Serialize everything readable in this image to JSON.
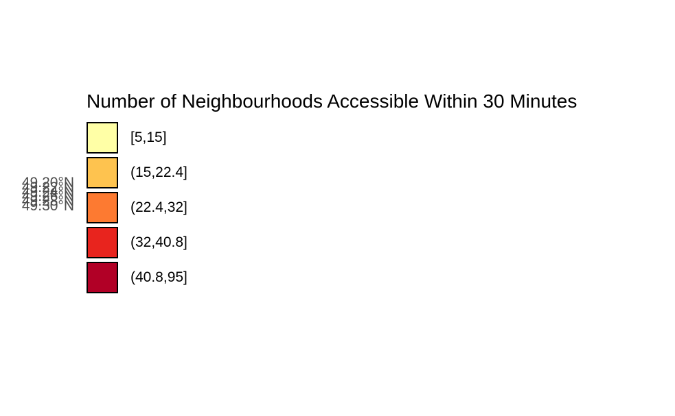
{
  "map": {
    "lat_labels": [
      "49.20°N",
      "49.22°N",
      "49.24°N",
      "49.26°N",
      "49.28°N",
      "49.30°N"
    ]
  },
  "legend": {
    "title": "Number of Neighbourhoods Accessible Within 30 Minutes",
    "items": [
      {
        "label": "[5,15]",
        "color": "#FFFFA6"
      },
      {
        "label": "(15,22.4]",
        "color": "#FEC34F"
      },
      {
        "label": "(22.4,32]",
        "color": "#FD7A31"
      },
      {
        "label": "(32,40.8]",
        "color": "#E8241E"
      },
      {
        "label": "(40.8,95]",
        "color": "#B10026"
      }
    ]
  }
}
